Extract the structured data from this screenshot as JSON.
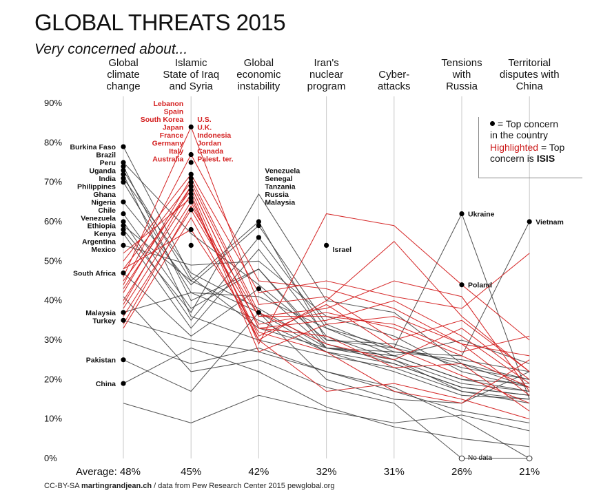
{
  "header": {
    "title": "GLOBAL THREATS 2015",
    "subtitle": "Very concerned about..."
  },
  "legend": {
    "line1": "= Top concern",
    "line2": "in the country",
    "line3_red": "Highlighted",
    "line3_rest": " = Top",
    "line4_rest": "concern is ",
    "line4_bold": "ISIS"
  },
  "footer": {
    "prefix": "CC-BY-SA ",
    "author": "martingrandjean.ch",
    "suffix": " / data from Pew Research Center 2015 pewglobal.org"
  },
  "chart_data": {
    "type": "line",
    "title": "GLOBAL THREATS 2015",
    "subtitle": "Very concerned about...",
    "ylim": [
      0,
      90
    ],
    "yticks": [
      "0%",
      "10%",
      "20%",
      "30%",
      "40%",
      "50%",
      "60%",
      "70%",
      "80%",
      "90%"
    ],
    "grid": false,
    "categories": [
      "Global climate change",
      "Islamic State of Iraq and Syria",
      "Global economic instability",
      "Iran's nuclear program",
      "Cyber-attacks",
      "Tensions with Russia",
      "Territorial disputes with China"
    ],
    "category_lines": [
      [
        "Global",
        "climate",
        "change"
      ],
      [
        "Islamic",
        "State of Iraq",
        "and Syria"
      ],
      [
        "Global",
        "economic",
        "instability"
      ],
      [
        "Iran's",
        "nuclear",
        "program"
      ],
      [
        "Cyber-",
        "attacks"
      ],
      [
        "Tensions",
        "with",
        "Russia"
      ],
      [
        "Territorial",
        "disputes with",
        "China"
      ]
    ],
    "averages": [
      "Average: 48%",
      "45%",
      "42%",
      "32%",
      "31%",
      "26%",
      "21%"
    ],
    "series": [
      {
        "values": [
          79,
          46,
          33,
          28,
          26,
          20,
          19
        ],
        "isis": false
      },
      {
        "values": [
          75,
          57,
          44,
          30,
          28,
          24,
          20
        ],
        "isis": false
      },
      {
        "values": [
          74,
          40,
          48,
          28,
          25,
          19,
          17
        ],
        "isis": false
      },
      {
        "values": [
          73,
          45,
          37,
          27,
          24,
          18,
          16
        ],
        "isis": false
      },
      {
        "values": [
          72,
          36,
          30,
          26,
          23,
          17,
          14
        ],
        "isis": false
      },
      {
        "values": [
          71,
          47,
          38,
          28,
          27,
          26,
          60
        ],
        "isis": false
      },
      {
        "values": [
          70,
          42,
          35,
          27,
          22,
          16,
          15
        ],
        "isis": false
      },
      {
        "values": [
          65,
          44,
          59,
          34,
          27,
          25,
          22
        ],
        "isis": false
      },
      {
        "values": [
          62,
          38,
          48,
          29,
          24,
          18,
          16
        ],
        "isis": false
      },
      {
        "values": [
          60,
          35,
          56,
          33,
          26,
          20,
          17
        ],
        "isis": false
      },
      {
        "values": [
          59,
          45,
          60,
          30,
          29,
          23,
          20
        ],
        "isis": false
      },
      {
        "values": [
          58,
          37,
          67,
          40,
          37,
          24,
          18
        ],
        "isis": false
      },
      {
        "values": [
          57,
          33,
          53,
          31,
          25,
          17,
          15
        ],
        "isis": false
      },
      {
        "values": [
          54,
          49,
          50,
          36,
          31,
          22,
          18
        ],
        "isis": false
      },
      {
        "values": [
          47,
          31,
          43,
          28,
          26,
          30,
          24
        ],
        "isis": false
      },
      {
        "values": [
          37,
          42,
          41,
          33,
          28,
          62,
          15
        ],
        "isis": false
      },
      {
        "values": [
          35,
          30,
          27,
          22,
          18,
          10,
          0
        ],
        "isis": false
      },
      {
        "values": [
          25,
          17,
          37,
          20,
          15,
          14,
          22
        ],
        "isis": false
      },
      {
        "values": [
          19,
          28,
          22,
          13,
          8,
          5,
          3
        ],
        "isis": false
      },
      {
        "values": [
          14,
          9,
          16,
          12,
          9,
          11,
          7
        ],
        "isis": false
      },
      {
        "values": [
          41,
          22,
          25,
          18,
          14,
          0,
          0
        ],
        "isis": false
      },
      {
        "values": [
          30,
          24,
          28,
          22,
          17,
          12,
          9
        ],
        "isis": false
      },
      {
        "values": [
          45,
          68,
          29,
          62,
          59,
          44,
          30
        ],
        "isis": true
      },
      {
        "values": [
          52,
          66,
          30,
          40,
          55,
          36,
          22
        ],
        "isis": true
      },
      {
        "values": [
          48,
          70,
          36,
          38,
          45,
          41,
          17
        ],
        "isis": true
      },
      {
        "values": [
          43,
          69,
          33,
          35,
          40,
          31,
          19
        ],
        "isis": true
      },
      {
        "values": [
          40,
          67,
          27,
          34,
          36,
          29,
          16
        ],
        "isis": true
      },
      {
        "values": [
          38,
          65,
          31,
          39,
          28,
          21,
          14
        ],
        "isis": true
      },
      {
        "values": [
          36,
          63,
          34,
          37,
          33,
          26,
          18
        ],
        "isis": true
      },
      {
        "values": [
          50,
          72,
          42,
          45,
          41,
          38,
          52
        ],
        "isis": true
      },
      {
        "values": [
          46,
          84,
          39,
          41,
          30,
          35,
          22
        ],
        "isis": true
      },
      {
        "values": [
          44,
          77,
          45,
          43,
          38,
          29,
          26
        ],
        "isis": true
      },
      {
        "values": [
          42,
          71,
          37,
          29,
          25,
          33,
          20
        ],
        "isis": true
      },
      {
        "values": [
          39,
          69,
          33,
          31,
          23,
          24,
          12
        ],
        "isis": true
      },
      {
        "values": [
          34,
          64,
          36,
          36,
          34,
          27,
          31
        ],
        "isis": true
      },
      {
        "values": [
          33,
          61,
          30,
          17,
          19,
          15,
          10
        ],
        "isis": true
      },
      {
        "values": [
          48,
          58,
          32,
          27,
          17,
          14,
          25
        ],
        "isis": true
      }
    ],
    "top_concern_dots": [
      {
        "axis": 0,
        "values": [
          79,
          75,
          74,
          73,
          72,
          71,
          70,
          65,
          62,
          60,
          59,
          58,
          57,
          54,
          47,
          37,
          35,
          25,
          19
        ]
      },
      {
        "axis": 1,
        "values": [
          84,
          77,
          75,
          72,
          71,
          70,
          69,
          68,
          67,
          66,
          65,
          63,
          58,
          54
        ]
      },
      {
        "axis": 2,
        "values": [
          60,
          59,
          56,
          43,
          37
        ]
      },
      {
        "axis": 3,
        "values": [
          54
        ]
      },
      {
        "axis": 5,
        "values": [
          62,
          44
        ]
      },
      {
        "axis": 6,
        "values": [
          60
        ]
      }
    ],
    "no_data_markers": [
      {
        "axis": 5,
        "value": 0
      },
      {
        "axis": 6,
        "value": 0
      }
    ],
    "annotations": [
      {
        "axis": 0,
        "side": "left",
        "color": "black",
        "value": 79,
        "text": "Burkina Faso"
      },
      {
        "axis": 0,
        "side": "left",
        "color": "black",
        "value": 77,
        "text": "Brazil"
      },
      {
        "axis": 0,
        "side": "left",
        "color": "black",
        "value": 75,
        "text": "Peru"
      },
      {
        "axis": 0,
        "side": "left",
        "color": "black",
        "value": 73,
        "text": "Uganda"
      },
      {
        "axis": 0,
        "side": "left",
        "color": "black",
        "value": 71,
        "text": "India"
      },
      {
        "axis": 0,
        "side": "left",
        "color": "black",
        "value": 69,
        "text": "Philippines"
      },
      {
        "axis": 0,
        "side": "left",
        "color": "black",
        "value": 67,
        "text": "Ghana"
      },
      {
        "axis": 0,
        "side": "left",
        "color": "black",
        "value": 65,
        "text": "Nigeria"
      },
      {
        "axis": 0,
        "side": "left",
        "color": "black",
        "value": 63,
        "text": "Chile"
      },
      {
        "axis": 0,
        "side": "left",
        "color": "black",
        "value": 61,
        "text": "Venezuela"
      },
      {
        "axis": 0,
        "side": "left",
        "color": "black",
        "value": 59,
        "text": "Ethiopia"
      },
      {
        "axis": 0,
        "side": "left",
        "color": "black",
        "value": 57,
        "text": "Kenya"
      },
      {
        "axis": 0,
        "side": "left",
        "color": "black",
        "value": 55,
        "text": "Argentina"
      },
      {
        "axis": 0,
        "side": "left",
        "color": "black",
        "value": 53,
        "text": "Mexico"
      },
      {
        "axis": 0,
        "side": "left",
        "color": "black",
        "value": 47,
        "text": "South Africa"
      },
      {
        "axis": 0,
        "side": "left",
        "color": "black",
        "value": 37,
        "text": "Malaysia"
      },
      {
        "axis": 0,
        "side": "left",
        "color": "black",
        "value": 35,
        "text": "Turkey"
      },
      {
        "axis": 0,
        "side": "left",
        "color": "black",
        "value": 25,
        "text": "Pakistan"
      },
      {
        "axis": 0,
        "side": "left",
        "color": "black",
        "value": 19,
        "text": "China"
      },
      {
        "axis": 1,
        "side": "left",
        "color": "red",
        "value": 90,
        "text": "Lebanon"
      },
      {
        "axis": 1,
        "side": "left",
        "color": "red",
        "value": 88,
        "text": "Spain"
      },
      {
        "axis": 1,
        "side": "left",
        "color": "red",
        "value": 86,
        "text": "South Korea"
      },
      {
        "axis": 1,
        "side": "left",
        "color": "red",
        "value": 84,
        "text": "Japan"
      },
      {
        "axis": 1,
        "side": "left",
        "color": "red",
        "value": 82,
        "text": "France"
      },
      {
        "axis": 1,
        "side": "left",
        "color": "red",
        "value": 80,
        "text": "Germany"
      },
      {
        "axis": 1,
        "side": "left",
        "color": "red",
        "value": 78,
        "text": "Italy"
      },
      {
        "axis": 1,
        "side": "left",
        "color": "red",
        "value": 76,
        "text": "Australia"
      },
      {
        "axis": 1,
        "side": "right",
        "color": "red",
        "value": 86,
        "text": "U.S."
      },
      {
        "axis": 1,
        "side": "right",
        "color": "red",
        "value": 84,
        "text": "U.K."
      },
      {
        "axis": 1,
        "side": "right",
        "color": "red",
        "value": 82,
        "text": "Indonesia"
      },
      {
        "axis": 1,
        "side": "right",
        "color": "red",
        "value": 80,
        "text": "Jordan"
      },
      {
        "axis": 1,
        "side": "right",
        "color": "red",
        "value": 78,
        "text": "Canada"
      },
      {
        "axis": 1,
        "side": "right",
        "color": "red",
        "value": 76,
        "text": "Palest. ter."
      },
      {
        "axis": 2,
        "side": "right",
        "color": "black",
        "value": 73,
        "text": "Venezuela"
      },
      {
        "axis": 2,
        "side": "right",
        "color": "black",
        "value": 71,
        "text": "Senegal"
      },
      {
        "axis": 2,
        "side": "right",
        "color": "black",
        "value": 69,
        "text": "Tanzania"
      },
      {
        "axis": 2,
        "side": "right",
        "color": "black",
        "value": 67,
        "text": "Russia"
      },
      {
        "axis": 2,
        "side": "right",
        "color": "black",
        "value": 65,
        "text": "Malaysia"
      },
      {
        "axis": 3,
        "side": "right",
        "color": "black",
        "value": 53,
        "text": "Israel"
      },
      {
        "axis": 5,
        "side": "right",
        "color": "black",
        "value": 62,
        "text": "Ukraine"
      },
      {
        "axis": 5,
        "side": "right",
        "color": "black",
        "value": 44,
        "text": "Poland"
      },
      {
        "axis": 6,
        "side": "right",
        "color": "black",
        "value": 60,
        "text": "Vietnam"
      },
      {
        "axis": 5,
        "side": "right",
        "color": "black",
        "value": 0,
        "text": "No data"
      }
    ],
    "colors": {
      "normal": "#3a3a3a",
      "isis": "#d42020",
      "axis": "#c8c8c8"
    }
  }
}
